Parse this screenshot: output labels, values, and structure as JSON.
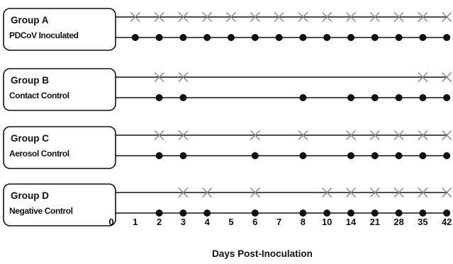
{
  "axis": {
    "title": "Days Post-Inoculation",
    "ticks": [
      "0",
      "1",
      "2",
      "3",
      "4",
      "5",
      "6",
      "7",
      "8",
      "10",
      "14",
      "21",
      "28",
      "35",
      "42"
    ]
  },
  "legend_marks": {
    "cross": "x-mark-icon",
    "dot": "filled-dot-icon"
  },
  "colors": {
    "line": "#111111",
    "cross": "#8a8a8a",
    "dot": "#111111"
  },
  "groups": [
    {
      "title": "Group A",
      "subtitle": "PDCoV Inoculated",
      "crosses": [
        "1",
        "2",
        "3",
        "4",
        "5",
        "6",
        "7",
        "8",
        "10",
        "14",
        "21",
        "28",
        "35",
        "42"
      ],
      "dots": [
        "1",
        "2",
        "3",
        "4",
        "5",
        "6",
        "7",
        "8",
        "10",
        "14",
        "21",
        "28",
        "35",
        "42"
      ]
    },
    {
      "title": "Group B",
      "subtitle": "Contact Control",
      "crosses": [
        "2",
        "3",
        "35",
        "42"
      ],
      "dots": [
        "2",
        "3",
        "8",
        "14",
        "21",
        "28",
        "35",
        "42"
      ]
    },
    {
      "title": "Group C",
      "subtitle": "Aerosol Control",
      "crosses": [
        "2",
        "3",
        "6",
        "8",
        "14",
        "21",
        "28",
        "35",
        "42"
      ],
      "dots": [
        "2",
        "3",
        "6",
        "8",
        "14",
        "21",
        "28",
        "35",
        "42"
      ]
    },
    {
      "title": "Group D",
      "subtitle": "Negative Control",
      "crosses": [
        "3",
        "4",
        "6",
        "10",
        "14",
        "21",
        "28",
        "35",
        "42"
      ],
      "dots": [
        "2",
        "3",
        "4",
        "6",
        "8",
        "10",
        "14",
        "21",
        "28",
        "35",
        "42"
      ]
    }
  ]
}
